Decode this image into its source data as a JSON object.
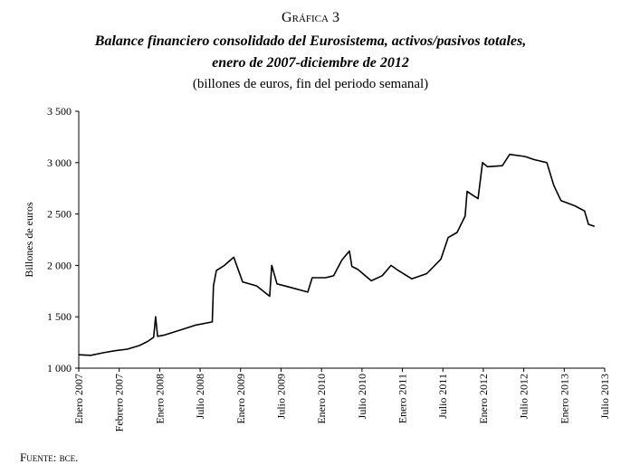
{
  "chart_data": {
    "type": "line",
    "figure_label": "Gráfica 3",
    "title": "Balance financiero consolidado del Eurosistema, activos/pasivos totales,",
    "title_line2": "enero de 2007-diciembre de 2012",
    "subtitle": "(billones de euros, fin del periodo semanal)",
    "y_label": "Billones de euros",
    "source": "Fuente: bce.",
    "color": "#000000",
    "xlim": [
      0,
      13
    ],
    "xticks": [
      {
        "value": 0,
        "label": "Enero 2007"
      },
      {
        "value": 1,
        "label": "Febrero 2007"
      },
      {
        "value": 2,
        "label": "Enero 2008"
      },
      {
        "value": 3,
        "label": "Julio 2008"
      },
      {
        "value": 4,
        "label": "Enero 2009"
      },
      {
        "value": 5,
        "label": "Julio 2009"
      },
      {
        "value": 6,
        "label": "Enero 2010"
      },
      {
        "value": 7,
        "label": "Julio 2010"
      },
      {
        "value": 8,
        "label": "Enero 2011"
      },
      {
        "value": 9,
        "label": "Julio 2011"
      },
      {
        "value": 10,
        "label": "Enero 2012"
      },
      {
        "value": 11,
        "label": "Julio 2012"
      },
      {
        "value": 12,
        "label": "Enero 2013"
      },
      {
        "value": 13,
        "label": "Julio 2013"
      }
    ],
    "ylim": [
      1000,
      3500
    ],
    "yticks": [
      {
        "value": 1000,
        "label": "1 000"
      },
      {
        "value": 1500,
        "label": "1 500"
      },
      {
        "value": 2000,
        "label": "2 000"
      },
      {
        "value": 2500,
        "label": "2 500"
      },
      {
        "value": 3000,
        "label": "3 000"
      },
      {
        "value": 3500,
        "label": "3 500"
      }
    ],
    "x": [
      0,
      0.3,
      0.6,
      0.9,
      1.2,
      1.5,
      1.7,
      1.85,
      1.9,
      1.95,
      2.1,
      2.5,
      2.9,
      3.3,
      3.33,
      3.4,
      3.6,
      3.83,
      4.05,
      4.4,
      4.72,
      4.77,
      4.9,
      5.2,
      5.66,
      5.77,
      6.1,
      6.3,
      6.5,
      6.69,
      6.75,
      6.9,
      7.23,
      7.5,
      7.72,
      7.9,
      8.23,
      8.6,
      8.95,
      9.13,
      9.35,
      9.55,
      9.6,
      9.75,
      9.87,
      9.98,
      10.1,
      10.47,
      10.65,
      11.03,
      11.25,
      11.57,
      11.74,
      11.92,
      12.26,
      12.5,
      12.6,
      12.75
    ],
    "values": [
      1130,
      1125,
      1150,
      1170,
      1185,
      1220,
      1260,
      1300,
      1500,
      1310,
      1320,
      1370,
      1420,
      1450,
      1800,
      1950,
      2000,
      2080,
      1840,
      1800,
      1700,
      2000,
      1820,
      1790,
      1740,
      1880,
      1880,
      1900,
      2050,
      2140,
      1990,
      1960,
      1850,
      1900,
      2000,
      1950,
      1870,
      1920,
      2060,
      2270,
      2320,
      2480,
      2720,
      2680,
      2650,
      3000,
      2960,
      2970,
      3080,
      3060,
      3030,
      3000,
      2780,
      2630,
      2580,
      2530,
      2400,
      2380
    ]
  }
}
